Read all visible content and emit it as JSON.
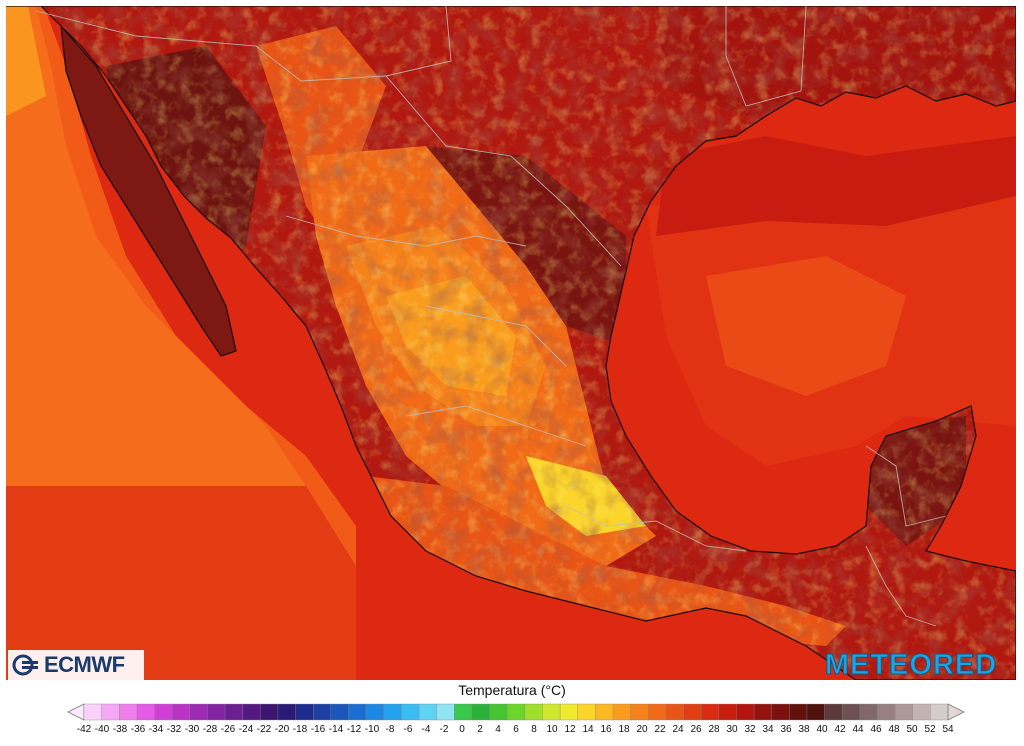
{
  "map": {
    "region": "Mexico and Gulf of Mexico",
    "variable": "Temperatura"
  },
  "logos": {
    "left": "ECMWF",
    "right": "METEORED"
  },
  "legend": {
    "title": "Temperatura (°C)",
    "min": -42,
    "max": 54,
    "step": 2,
    "tick_labels": [
      "-42",
      "-40",
      "-38",
      "-36",
      "-34",
      "-32",
      "-30",
      "-28",
      "-26",
      "-24",
      "-22",
      "-20",
      "-18",
      "-16",
      "-14",
      "-12",
      "-10",
      "-8",
      "-6",
      "-4",
      "-2",
      "0",
      "2",
      "4",
      "6",
      "8",
      "10",
      "12",
      "14",
      "16",
      "18",
      "20",
      "22",
      "24",
      "26",
      "28",
      "30",
      "32",
      "34",
      "36",
      "38",
      "40",
      "42",
      "44",
      "46",
      "48",
      "50",
      "52",
      "54"
    ],
    "colors": [
      "#fbd0fb",
      "#f7a8f4",
      "#f07fec",
      "#e45ae4",
      "#d13fd6",
      "#b833c6",
      "#9e29b5",
      "#8424a4",
      "#6b1f93",
      "#531a82",
      "#3d1670",
      "#2a1a76",
      "#1e2a8c",
      "#1c3fa3",
      "#1b56ba",
      "#1b6ed1",
      "#1c87e4",
      "#23a2f0",
      "#3bbcf3",
      "#5fd3f4",
      "#8fe6f2",
      "#39c84a",
      "#2bb23a",
      "#46c52f",
      "#6cd52a",
      "#9ee02a",
      "#cfe72c",
      "#f2ea2e",
      "#fbd52a",
      "#fbb924",
      "#fa9d1f",
      "#f6821b",
      "#f06a18",
      "#e85516",
      "#e03f14",
      "#d72c12",
      "#c61e11",
      "#b01510",
      "#94120f",
      "#7a110e",
      "#63110d",
      "#4f120e",
      "#5c3a3a",
      "#6e5050",
      "#826868",
      "#988080",
      "#ad9999",
      "#c2b2b2",
      "#d6cccc"
    ]
  }
}
